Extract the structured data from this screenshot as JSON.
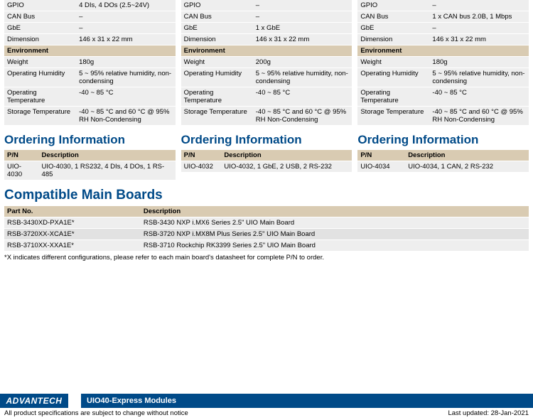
{
  "labels": {
    "gpio": "GPIO",
    "can": "CAN Bus",
    "gbe": "GbE",
    "dim": "Dimension",
    "env": "Environment",
    "weight": "Weight",
    "hum": "Operating Humidity",
    "optemp": "Operating Temperature",
    "sttemp": "Storage Temperature",
    "order": "Ordering Information",
    "pn": "P/N",
    "desc": "Description",
    "compat": "Compatible Main Boards",
    "partno": "Part No."
  },
  "col1": {
    "gpio": "4 DIs, 4 DOs (2.5~24V)",
    "can": "–",
    "gbe": "–",
    "dim": "146 x 31 x 22 mm",
    "weight": "180g",
    "hum": "5 ~ 95% relative humidity, non-condensing",
    "optemp": "-40 ~ 85 °C",
    "sttemp": "-40 ~ 85 °C and 60 °C @ 95% RH Non-Condensing",
    "order_pn": "UIO-4030",
    "order_desc": "UIO-4030, 1 RS232, 4 DIs, 4 DOs, 1 RS-485"
  },
  "col2": {
    "gpio": "–",
    "can": "–",
    "gbe": "1 x GbE",
    "dim": "146 x 31 x 22 mm",
    "weight": "200g",
    "hum": "5 ~ 95% relative humidity, non-condensing",
    "optemp": "-40 ~ 85 °C",
    "sttemp": "-40 ~ 85 °C and 60 °C @ 95% RH Non-Condensing",
    "order_pn": "UIO-4032",
    "order_desc": "UIO-4032, 1 GbE, 2 USB, 2 RS-232"
  },
  "col3": {
    "gpio": "–",
    "can": "1 x CAN bus 2.0B, 1 Mbps",
    "gbe": "–",
    "dim": "146 x 31 x 22 mm",
    "weight": "180g",
    "hum": "5 ~ 95% relative humidity, non-condensing",
    "optemp": "-40 ~ 85 °C",
    "sttemp": "-40 ~ 85 °C and 60 °C @ 95% RH Non-Condensing",
    "order_pn": "UIO-4034",
    "order_desc": "UIO-4034, 1 CAN, 2 RS-232"
  },
  "compat": {
    "rows": [
      {
        "pn": "RSB-3430XD-PXA1E*",
        "desc": "RSB-3430 NXP i.MX6 Series 2.5\" UIO Main Board"
      },
      {
        "pn": "RSB-3720XX-XCA1E*",
        "desc": "RSB-3720 NXP i.MX8M Plus Series 2.5\" UIO Main Board"
      },
      {
        "pn": "RSB-3710XX-XXA1E*",
        "desc": "RSB-3710 Rockchip RK3399 Series 2.5\" UIO Main Board"
      }
    ],
    "note": "*X indicates different configurations, please refer to each main board's datasheet for complete P/N to order."
  },
  "footer": {
    "logo": "ADVANTECH",
    "title": "UIO40-Express Modules",
    "left": "All product specifications are subject to change without notice",
    "right": "Last updated: 28-Jan-2021"
  }
}
